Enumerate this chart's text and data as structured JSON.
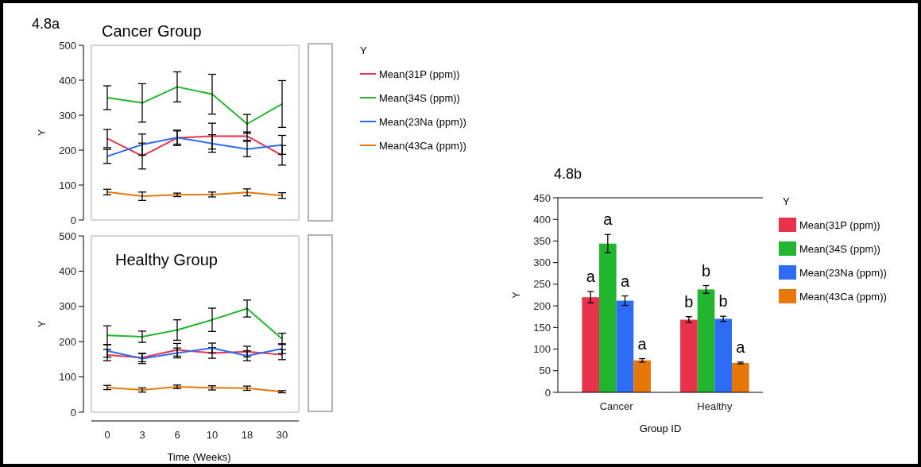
{
  "chart_data": [
    {
      "type": "line",
      "title": "Cancer Group",
      "annotations": [
        "4.8a"
      ],
      "ylabel": "Y",
      "legend_title": "Y",
      "legend": "right",
      "tick_labels": "y",
      "categories": [
        "0",
        "3",
        "6",
        "10",
        "18",
        "30"
      ],
      "ylim": [
        0,
        500
      ],
      "yticks": [
        0,
        100,
        200,
        300,
        400,
        500
      ],
      "series": [
        {
          "name": "Mean(31P (ppm))",
          "color": "#e8334a",
          "values": [
            233,
            183,
            235,
            240,
            240,
            185
          ],
          "errors": [
            26,
            37,
            22,
            37,
            12,
            28
          ]
        },
        {
          "name": "Mean(34S (ppm))",
          "color": "#22b530",
          "values": [
            350,
            335,
            381,
            360,
            275,
            332
          ],
          "errors": [
            34,
            55,
            43,
            57,
            27,
            67
          ]
        },
        {
          "name": "Mean(23Na (ppm))",
          "color": "#2d6df5",
          "values": [
            182,
            216,
            236,
            219,
            203,
            215
          ],
          "errors": [
            20,
            30,
            19,
            25,
            22,
            27
          ]
        },
        {
          "name": "Mean(43Ca (ppm))",
          "color": "#e6780a",
          "values": [
            80,
            68,
            72,
            73,
            79,
            70
          ],
          "errors": [
            8,
            12,
            5,
            7,
            10,
            8
          ]
        }
      ]
    },
    {
      "type": "line",
      "title": "Healthy Group",
      "xlabel": "Time (Weeks)",
      "ylabel": "Y",
      "categories": [
        "0",
        "3",
        "6",
        "10",
        "18",
        "30"
      ],
      "ylim": [
        0,
        500
      ],
      "yticks": [
        0,
        100,
        200,
        300,
        400,
        500
      ],
      "series": [
        {
          "color": "#e8334a",
          "values": [
            162,
            155,
            177,
            168,
            172,
            163
          ],
          "errors": [
            16,
            12,
            18,
            15,
            15,
            14
          ]
        },
        {
          "color": "#22b530",
          "values": [
            218,
            214,
            233,
            262,
            294,
            208
          ],
          "errors": [
            27,
            16,
            29,
            33,
            24,
            16
          ]
        },
        {
          "color": "#2d6df5",
          "values": [
            174,
            152,
            168,
            182,
            160,
            180
          ],
          "errors": [
            18,
            14,
            14,
            14,
            14,
            14
          ]
        },
        {
          "color": "#e6780a",
          "values": [
            70,
            63,
            72,
            69,
            68,
            58
          ],
          "errors": [
            6,
            6,
            5,
            6,
            6,
            3
          ]
        }
      ]
    },
    {
      "type": "bar",
      "annotations": [
        "4.8b"
      ],
      "xlabel": "Group ID",
      "ylabel": "Y",
      "legend_title": "Y",
      "legend": "right",
      "categories": [
        "Cancer",
        "Healthy"
      ],
      "ylim": [
        0,
        450
      ],
      "yticks": [
        0,
        50,
        100,
        150,
        200,
        250,
        300,
        350,
        400,
        450
      ],
      "series": [
        {
          "name": "Mean(31P (ppm))",
          "color": "#e8334a",
          "values": [
            220,
            168
          ],
          "errors": [
            13,
            7
          ],
          "value_labels": [
            "a",
            "b"
          ]
        },
        {
          "name": "Mean(34S (ppm))",
          "color": "#22b530",
          "values": [
            344,
            238
          ],
          "errors": [
            21,
            9
          ],
          "value_labels": [
            "a",
            "b"
          ]
        },
        {
          "name": "Mean(23Na (ppm))",
          "color": "#2d6df5",
          "values": [
            212,
            170
          ],
          "errors": [
            11,
            6
          ],
          "value_labels": [
            "a",
            "b"
          ]
        },
        {
          "name": "Mean(43Ca (ppm))",
          "color": "#e6780a",
          "values": [
            74,
            68
          ],
          "errors": [
            4,
            2
          ],
          "value_labels": [
            "a",
            "a"
          ]
        }
      ]
    }
  ]
}
